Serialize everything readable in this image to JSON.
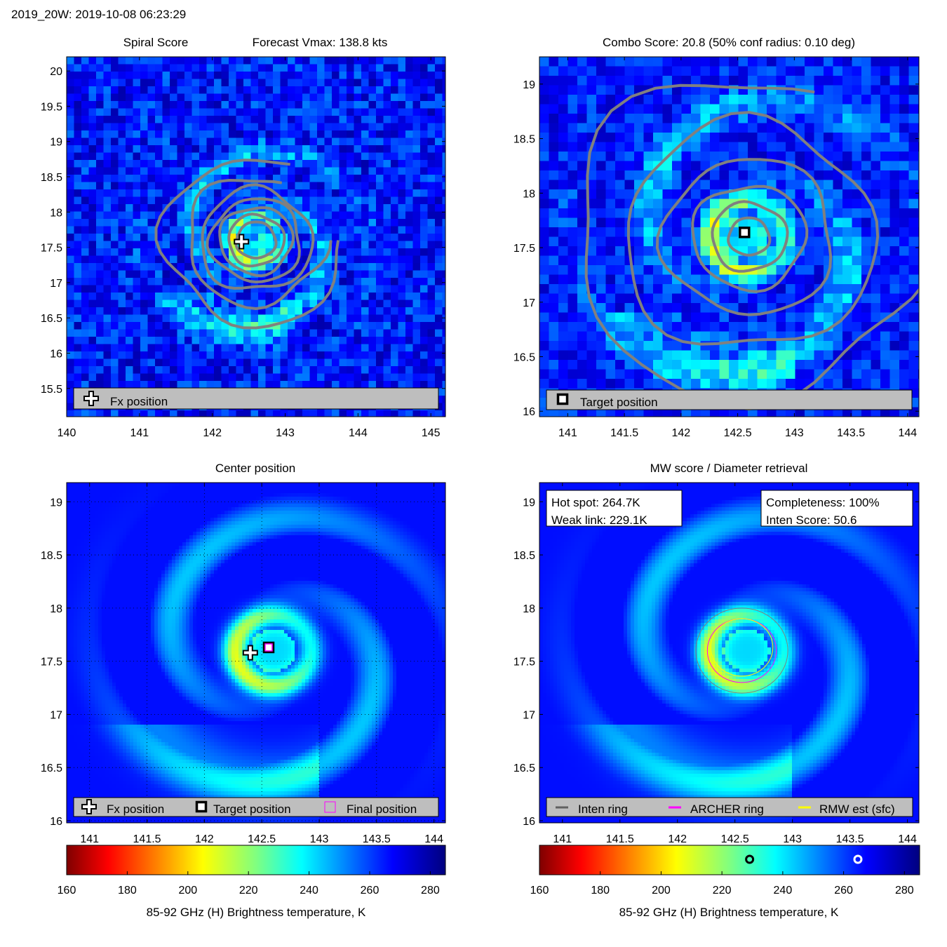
{
  "header": {
    "title": "2019_20W: 2019-10-08 06:23:29"
  },
  "colors": {
    "contour": "#808080",
    "legend_bg": "#bebebe",
    "archer_ring": "#ff00ff",
    "rmw_ring": "#ffff00",
    "inten_ring": "#808080",
    "final_marker": "#ff00ff"
  },
  "panels": {
    "spiral": {
      "title_left": "Spiral Score",
      "title_right": "Forecast Vmax: 138.8 kts",
      "legend": {
        "fx": "Fx position"
      }
    },
    "combo": {
      "title": "Combo Score: 20.8  (50% conf radius: 0.10 deg)",
      "legend": {
        "target": "Target position"
      }
    },
    "center": {
      "title": "Center position",
      "legend": {
        "fx": "Fx position",
        "target": "Target position",
        "final": "Final position"
      }
    },
    "mw": {
      "title": "MW score / Diameter retrieval",
      "box_left": {
        "line1": "Hot spot: 264.7K",
        "line2": "Weak link: 229.1K"
      },
      "box_right": {
        "line1": "Completeness: 100%",
        "line2": "Inten Score: 50.6"
      },
      "legend": {
        "inten": "Inten ring",
        "archer": "ARCHER ring",
        "rmw": "RMW est (sfc)"
      }
    }
  },
  "chart_data": [
    {
      "type": "heatmap",
      "panel": "spiral",
      "title": "Spiral Score    Forecast Vmax: 138.8 kts",
      "xlim": [
        140,
        145.2
      ],
      "ylim": [
        15.1,
        20.2
      ],
      "xticks": [
        140,
        141,
        142,
        143,
        144,
        145
      ],
      "yticks": [
        15.5,
        16,
        16.5,
        17,
        17.5,
        18,
        18.5,
        19,
        19.5,
        20
      ],
      "markers": [
        {
          "label": "Fx position",
          "symbol": "plus",
          "lon": 142.4,
          "lat": 17.58
        }
      ],
      "eye_center": {
        "lon": 142.6,
        "lat": 17.6
      }
    },
    {
      "type": "heatmap",
      "panel": "combo",
      "title": "Combo Score: 20.8  (50% conf radius: 0.10 deg)",
      "xlim": [
        140.75,
        144.1
      ],
      "ylim": [
        15.95,
        19.25
      ],
      "xticks": [
        141,
        141.5,
        142,
        142.5,
        143,
        143.5,
        144
      ],
      "yticks": [
        16,
        16.5,
        17,
        17.5,
        18,
        18.5,
        19
      ],
      "markers": [
        {
          "label": "Target position",
          "symbol": "square",
          "lon": 142.56,
          "lat": 17.64
        }
      ],
      "eye_center": {
        "lon": 142.6,
        "lat": 17.6
      }
    },
    {
      "type": "heatmap",
      "panel": "center",
      "title": "Center position",
      "xlim": [
        140.8,
        144.1
      ],
      "ylim": [
        15.98,
        19.18
      ],
      "xticks": [
        141,
        141.5,
        142,
        142.5,
        143,
        143.5,
        144
      ],
      "yticks": [
        16,
        16.5,
        17,
        17.5,
        18,
        18.5,
        19
      ],
      "grid": true,
      "markers": [
        {
          "label": "Fx position",
          "symbol": "plus",
          "lon": 142.4,
          "lat": 17.58
        },
        {
          "label": "Target position",
          "symbol": "square",
          "lon": 142.56,
          "lat": 17.63
        },
        {
          "label": "Final position",
          "symbol": "magenta-square",
          "lon": 142.56,
          "lat": 17.63
        }
      ],
      "colorbar": {
        "label": "85-92 GHz (H) Brightness temperature, K",
        "range": [
          160,
          285
        ],
        "ticks": [
          160,
          180,
          200,
          220,
          240,
          260,
          280
        ]
      },
      "eye_center": {
        "lon": 142.6,
        "lat": 17.6
      }
    },
    {
      "type": "heatmap",
      "panel": "mw",
      "title": "MW score / Diameter retrieval",
      "xlim": [
        140.8,
        144.1
      ],
      "ylim": [
        15.98,
        19.18
      ],
      "xticks": [
        141,
        141.5,
        142,
        142.5,
        143,
        143.5,
        144
      ],
      "yticks": [
        16,
        16.5,
        17,
        17.5,
        18,
        18.5,
        19
      ],
      "rings": [
        {
          "name": "Inten ring",
          "lon": 142.56,
          "lat": 17.6,
          "radius_deg": 0.4
        },
        {
          "name": "ARCHER ring",
          "lon": 142.56,
          "lat": 17.6,
          "radius_deg": 0.3
        },
        {
          "name": "RMW est (sfc)",
          "lon": 142.56,
          "lat": 17.63,
          "radius_deg": 0.27
        }
      ],
      "hot_spot_K": 264.7,
      "weak_link_K": 229.1,
      "completeness_pct": 100,
      "inten_score": 50.6,
      "colorbar": {
        "label": "85-92 GHz (H) Brightness temperature, K",
        "range": [
          160,
          285
        ],
        "ticks": [
          160,
          180,
          200,
          220,
          240,
          260,
          280
        ],
        "markers": [
          {
            "value": 229.1,
            "style": "black-ring"
          },
          {
            "value": 264.7,
            "style": "white-ring"
          }
        ]
      },
      "eye_center": {
        "lon": 142.6,
        "lat": 17.6
      }
    }
  ]
}
